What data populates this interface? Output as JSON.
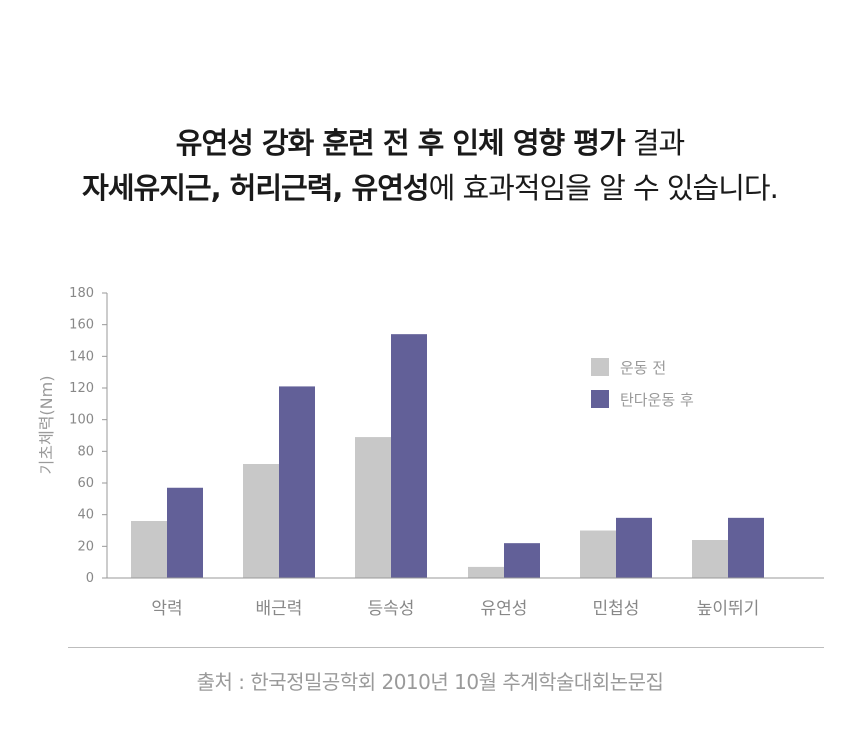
{
  "headline": {
    "line1_bold": "유연성 강화 훈련 전 후 인체 영향 평가",
    "line1_light": " 결과",
    "line2_bold": "자세유지근, 허리근력, 유연성",
    "line2_light": "에 효과적임을 알 수 있습니다."
  },
  "chart_data": {
    "type": "bar",
    "categories": [
      "악력",
      "배근력",
      "등속성",
      "유연성",
      "민첩성",
      "높이뛰기"
    ],
    "series": [
      {
        "name": "운동 전",
        "color": "#c8c8c8",
        "values": [
          36,
          72,
          89,
          7,
          30,
          24
        ]
      },
      {
        "name": "탄다운동 후",
        "color": "#626098",
        "values": [
          57,
          121,
          154,
          22,
          38,
          38
        ]
      }
    ],
    "ylabel": "기초체력(Nm)",
    "ylim": [
      0,
      180
    ],
    "yticks": [
      0,
      20,
      40,
      60,
      80,
      100,
      120,
      140,
      160,
      180
    ],
    "legend_position": "top-right",
    "grid": false
  },
  "source": "출처 : 한국정밀공학회 2010년 10월 추계학술대회논문집"
}
